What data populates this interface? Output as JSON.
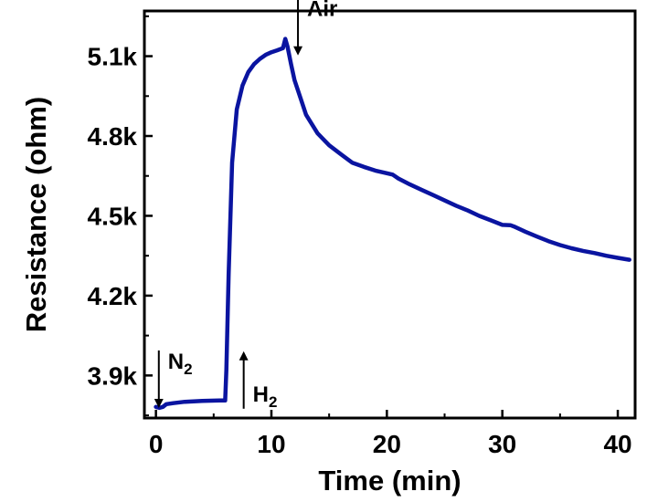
{
  "chart_data": {
    "type": "line",
    "title": "",
    "xlabel": "Time (min)",
    "ylabel": "Resistance (ohm)",
    "xlim": [
      -1,
      41.5
    ],
    "ylim": [
      3740,
      5270
    ],
    "x_ticks": [
      0,
      10,
      20,
      30,
      40
    ],
    "x_tick_labels": [
      "0",
      "10",
      "20",
      "30",
      "40"
    ],
    "y_ticks": [
      3900,
      4200,
      4500,
      4800,
      5100
    ],
    "y_tick_labels": [
      "3.9k",
      "4.2k",
      "4.5k",
      "4.8k",
      "5.1k"
    ],
    "grid": false,
    "legend": "none",
    "line_color": "#0a14a0",
    "series": [
      {
        "x": [
          0,
          0.3,
          0.6,
          0.9,
          1.5,
          2.5,
          4,
          5.5,
          6.0,
          6.1,
          6.3,
          6.6,
          7.0,
          7.5,
          8.0,
          8.5,
          9.0,
          9.5,
          10,
          10.5,
          11.0,
          11.2,
          11.4,
          11.7,
          12,
          12.5,
          13,
          14,
          15,
          16,
          17,
          18,
          19,
          20,
          20.5,
          21,
          22,
          23,
          24,
          25,
          26,
          27,
          28,
          29,
          30,
          30.7,
          31,
          32,
          33,
          34,
          35,
          36,
          37,
          38,
          39,
          40,
          41
        ],
        "y": [
          3782,
          3778,
          3782,
          3792,
          3796,
          3801,
          3804,
          3806,
          3806,
          3920,
          4280,
          4700,
          4900,
          4990,
          5040,
          5070,
          5090,
          5105,
          5115,
          5122,
          5130,
          5165,
          5135,
          5070,
          5010,
          4945,
          4880,
          4810,
          4765,
          4732,
          4700,
          4684,
          4670,
          4660,
          4655,
          4640,
          4618,
          4598,
          4578,
          4558,
          4538,
          4520,
          4500,
          4483,
          4466,
          4465,
          4460,
          4440,
          4422,
          4405,
          4390,
          4378,
          4368,
          4360,
          4350,
          4342,
          4335
        ]
      }
    ],
    "annotations": [
      {
        "text": "Air",
        "sub": "",
        "x": 12.3,
        "y": 5120,
        "arrow": "down"
      },
      {
        "text": "N",
        "sub": "2",
        "x": 0.25,
        "y": 3795,
        "arrow": "down"
      },
      {
        "text": "H",
        "sub": "2",
        "x": 7.6,
        "y": 3775,
        "arrow": "up"
      }
    ]
  }
}
